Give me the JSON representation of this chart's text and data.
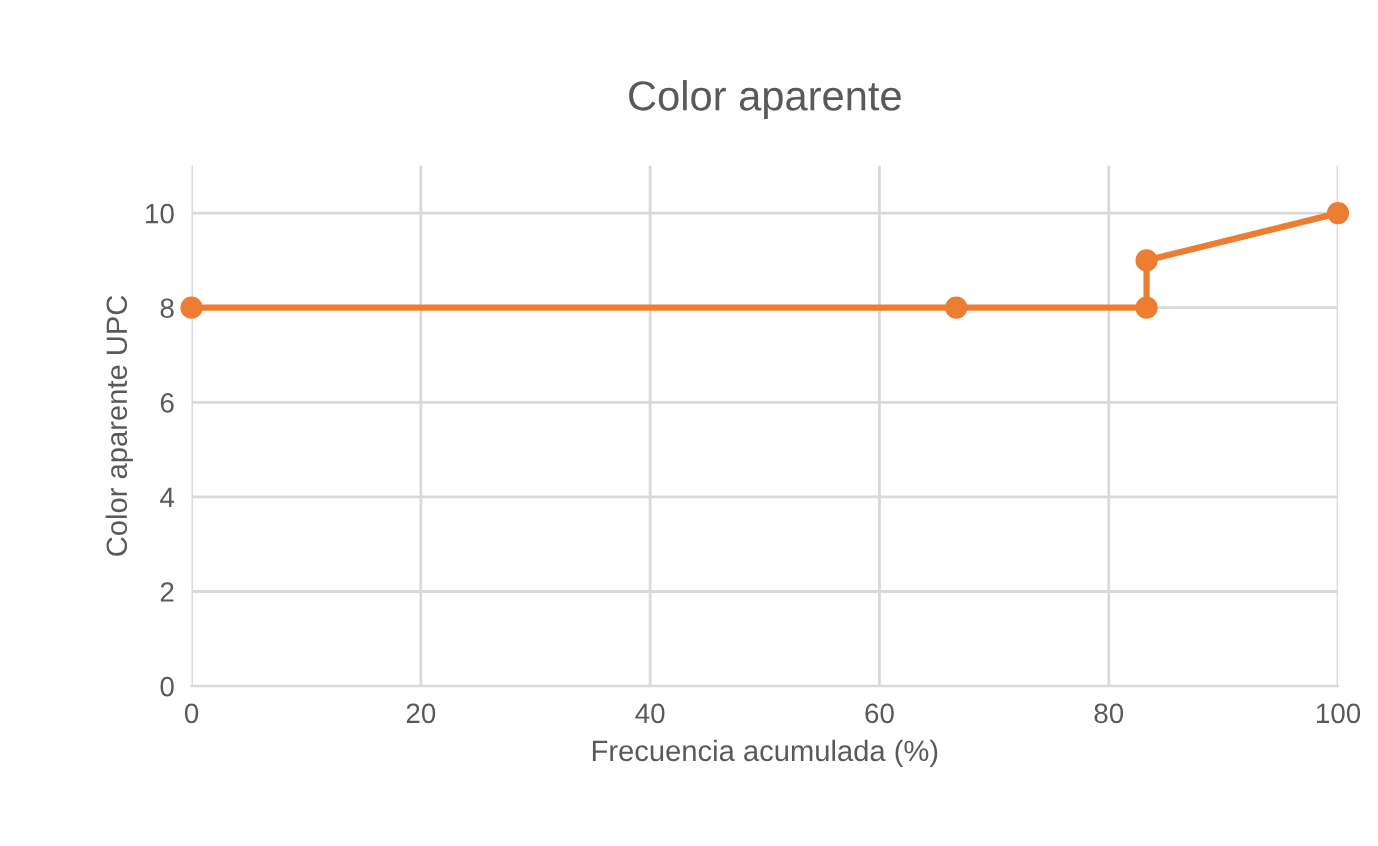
{
  "chart_data": {
    "type": "line",
    "title": "Color aparente",
    "xlabel": "Frecuencia acumulada (%)",
    "ylabel": "Color aparente UPC",
    "x": [
      0,
      66.7,
      83.3,
      83.3,
      100
    ],
    "series": [
      {
        "color": "#ed7d31",
        "values": [
          8,
          8,
          8,
          9,
          10
        ]
      }
    ],
    "xlim": [
      0,
      100
    ],
    "xticks": [
      0,
      20,
      40,
      60,
      80,
      100
    ],
    "ylim": [
      0,
      11
    ],
    "yticks": [
      0,
      2,
      4,
      6,
      8,
      10
    ],
    "grid": true,
    "marker": "circle",
    "line_style": "solid"
  }
}
